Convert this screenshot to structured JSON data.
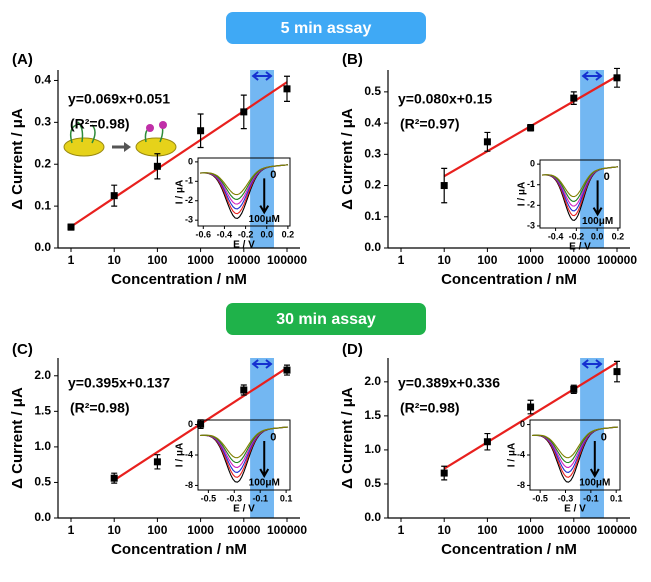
{
  "banners": [
    "5 min assay",
    "30 min assay"
  ],
  "chart_data": [
    {
      "type": "scatter",
      "panel_label": "(A)",
      "xlabel": "Concentration / nM",
      "ylabel": "Δ Current / μA",
      "log_x": true,
      "x": [
        1,
        10,
        100,
        1000,
        10000,
        100000
      ],
      "series": [
        {
          "color": "#000000",
          "values": [
            0.05,
            0.125,
            0.195,
            0.28,
            0.325,
            0.38
          ],
          "errors": [
            0.007,
            0.025,
            0.03,
            0.04,
            0.04,
            0.03
          ]
        }
      ],
      "xlim": [
        0.5,
        200000
      ],
      "xticks": [
        1,
        10,
        100,
        1000,
        10000,
        100000
      ],
      "ylim": [
        0,
        0.425
      ],
      "yticks": [
        {
          "value": 0,
          "label": "0.0"
        },
        0.1,
        0.2,
        0.3,
        0.4
      ],
      "fit": {
        "label": "y=0.069x+0.051",
        "r2_label": "(R²=0.98)",
        "slope": 0.069,
        "intercept": 0.051,
        "color": "#e8201e"
      },
      "highlight_x": [
        14000,
        50000
      ],
      "highlight_color": "#5aaaf0",
      "inset": {
        "xlim": [
          -0.65,
          0.22
        ],
        "xticks": [
          -0.6,
          -0.4,
          -0.2,
          {
            "value": 0,
            "label": "0.0"
          },
          0.2
        ],
        "ylim": [
          -3.3,
          0.2
        ],
        "yticks": [
          -3,
          -2,
          -1,
          0
        ],
        "xlabel": "E / V",
        "ylabel": "I / μA",
        "arrow_start": "0",
        "arrow_end": "100μM"
      }
    },
    {
      "type": "scatter",
      "panel_label": "(B)",
      "xlabel": "Concentration / nM",
      "ylabel": "Δ Current / μA",
      "log_x": true,
      "x": [
        10,
        100,
        1000,
        10000,
        100000
      ],
      "series": [
        {
          "color": "#000000",
          "values": [
            0.2,
            0.34,
            0.385,
            0.48,
            0.545
          ],
          "errors": [
            0.055,
            0.03,
            0.01,
            0.02,
            0.03
          ]
        }
      ],
      "xlim": [
        0.5,
        200000
      ],
      "xticks": [
        1,
        10,
        100,
        1000,
        10000,
        100000
      ],
      "ylim": [
        0,
        0.57
      ],
      "yticks": [
        {
          "value": 0,
          "label": "0.0"
        },
        0.1,
        0.2,
        0.3,
        0.4,
        0.5
      ],
      "fit": {
        "label": "y=0.080x+0.15",
        "r2_label": "(R²=0.97)",
        "slope": 0.08,
        "intercept": 0.15,
        "color": "#e8201e"
      },
      "highlight_x": [
        14000,
        50000
      ],
      "highlight_color": "#5aaaf0",
      "inset": {
        "xlim": [
          -0.55,
          0.22
        ],
        "xticks": [
          -0.4,
          -0.2,
          {
            "value": 0,
            "label": "0.0"
          },
          0.2
        ],
        "ylim": [
          -3.1,
          0.2
        ],
        "yticks": [
          -3,
          -2,
          -1,
          0
        ],
        "xlabel": "E / V",
        "ylabel": "I / μA",
        "arrow_start": "0",
        "arrow_end": "100μM"
      }
    },
    {
      "type": "scatter",
      "panel_label": "(C)",
      "xlabel": "Concentration / nM",
      "ylabel": "Δ Current / μA",
      "log_x": true,
      "x": [
        10,
        100,
        1000,
        10000,
        100000
      ],
      "series": [
        {
          "color": "#000000",
          "values": [
            0.56,
            0.79,
            1.32,
            1.8,
            2.08
          ],
          "errors": [
            0.07,
            0.1,
            0.06,
            0.07,
            0.07
          ]
        }
      ],
      "xlim": [
        0.5,
        200000
      ],
      "xticks": [
        1,
        10,
        100,
        1000,
        10000,
        100000
      ],
      "ylim": [
        0,
        2.25
      ],
      "yticks": [
        {
          "value": 0,
          "label": "0.0"
        },
        0.5,
        {
          "value": 1,
          "label": "1.0"
        },
        1.5,
        {
          "value": 2,
          "label": "2.0"
        }
      ],
      "fit": {
        "label": "y=0.395x+0.137",
        "r2_label": "(R²=0.98)",
        "slope": 0.395,
        "intercept": 0.137,
        "color": "#e8201e"
      },
      "highlight_x": [
        14000,
        50000
      ],
      "highlight_color": "#5aaaf0",
      "inset": {
        "xlim": [
          -0.58,
          0.13
        ],
        "xticks": [
          -0.5,
          -0.3,
          -0.1,
          0.1
        ],
        "ylim": [
          -8.6,
          0.6
        ],
        "yticks": [
          -8,
          -4,
          0
        ],
        "xlabel": "E / V",
        "ylabel": "I / μA",
        "arrow_start": "0",
        "arrow_end": "100μM"
      }
    },
    {
      "type": "scatter",
      "panel_label": "(D)",
      "xlabel": "Concentration / nM",
      "ylabel": "Δ Current / μA",
      "log_x": true,
      "x": [
        10,
        100,
        1000,
        10000,
        100000
      ],
      "series": [
        {
          "color": "#000000",
          "values": [
            0.66,
            1.12,
            1.63,
            1.89,
            2.15
          ],
          "errors": [
            0.1,
            0.12,
            0.1,
            0.06,
            0.15
          ]
        }
      ],
      "xlim": [
        0.5,
        200000
      ],
      "xticks": [
        1,
        10,
        100,
        1000,
        10000,
        100000
      ],
      "ylim": [
        0,
        2.35
      ],
      "yticks": [
        {
          "value": 0,
          "label": "0.0"
        },
        0.5,
        {
          "value": 1,
          "label": "1.0"
        },
        1.5,
        {
          "value": 2,
          "label": "2.0"
        }
      ],
      "fit": {
        "label": "y=0.389x+0.336",
        "r2_label": "(R²=0.98)",
        "slope": 0.389,
        "intercept": 0.336,
        "color": "#e8201e"
      },
      "highlight_x": [
        14000,
        50000
      ],
      "highlight_color": "#5aaaf0",
      "inset": {
        "xlim": [
          -0.58,
          0.13
        ],
        "xticks": [
          -0.5,
          -0.3,
          -0.1,
          0.1
        ],
        "ylim": [
          -8.6,
          0.6
        ],
        "yticks": [
          -8,
          -4,
          0
        ],
        "xlabel": "E / V",
        "ylabel": "I / μA",
        "arrow_start": "0",
        "arrow_end": "100μM"
      }
    }
  ]
}
